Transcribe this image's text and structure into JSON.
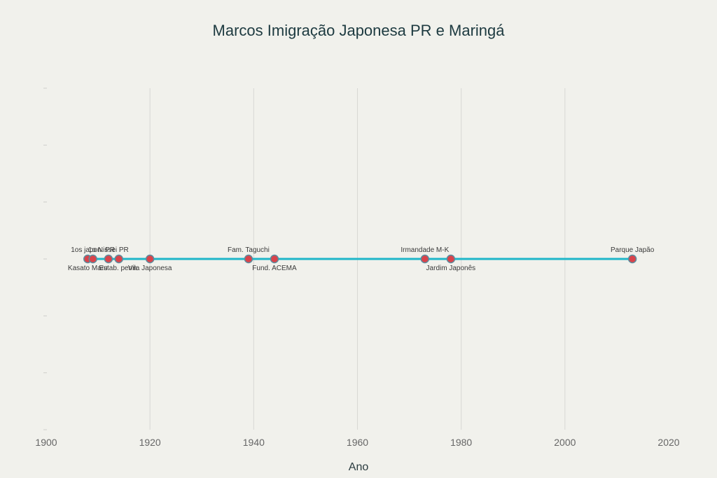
{
  "chart_data": {
    "type": "line",
    "title": "Marcos Imigração Japonesa PR e Maringá",
    "xlabel": "Ano",
    "ylabel": "",
    "xlim": [
      1900,
      2020
    ],
    "ylim": [
      -1,
      1
    ],
    "xticks": [
      1900,
      1920,
      1940,
      1960,
      1980,
      2000,
      2020
    ],
    "grid": true,
    "series_color": "#1fb6c9",
    "marker_color": "#d9434b",
    "marker_edge_color": "#5a8fa0",
    "events": [
      {
        "x": 1908,
        "y": 0,
        "label": "Kasato Maru",
        "position": "below"
      },
      {
        "x": 1909,
        "y": 0,
        "label": "1os japon. PR",
        "position": "above"
      },
      {
        "x": 1912,
        "y": 0,
        "label": "1o Nissei PR",
        "position": "above"
      },
      {
        "x": 1914,
        "y": 0,
        "label": "Estab. perm.",
        "position": "below"
      },
      {
        "x": 1920,
        "y": 0,
        "label": "Vila Japonesa",
        "position": "below"
      },
      {
        "x": 1939,
        "y": 0,
        "label": "Fam. Taguchi",
        "position": "above"
      },
      {
        "x": 1944,
        "y": 0,
        "label": "Fund. ACEMA",
        "position": "below"
      },
      {
        "x": 1973,
        "y": 0,
        "label": "Irmandade M-K",
        "position": "above"
      },
      {
        "x": 1978,
        "y": 0,
        "label": "Jardim Japonês",
        "position": "below"
      },
      {
        "x": 2013,
        "y": 0,
        "label": "Parque Japão",
        "position": "above"
      }
    ]
  }
}
